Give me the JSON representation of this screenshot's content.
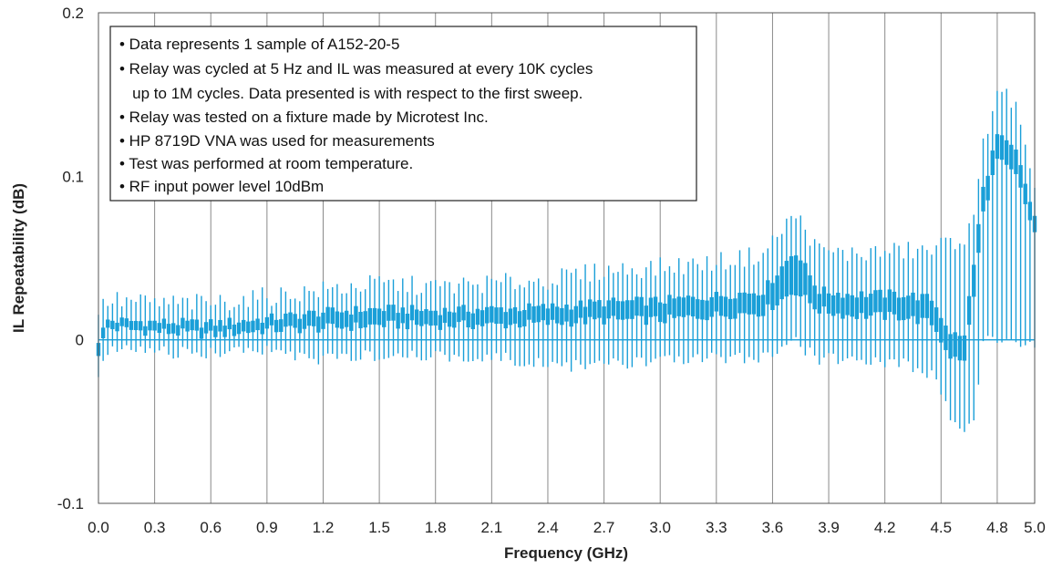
{
  "chart_data": {
    "type": "box",
    "title": "",
    "xlabel": "Frequency (GHz)",
    "ylabel": "IL Repeatability (dB)",
    "xlim": [
      0.0,
      5.0
    ],
    "ylim": [
      -0.1,
      0.2
    ],
    "x_ticks": [
      "0.0",
      "0.3",
      "0.6",
      "0.9",
      "1.2",
      "1.5",
      "1.8",
      "2.1",
      "2.4",
      "2.7",
      "3.0",
      "3.3",
      "3.6",
      "3.9",
      "4.2",
      "4.5",
      "4.8",
      "5.0"
    ],
    "y_ticks": [
      "-0.1",
      "0",
      "0.1",
      "0.2"
    ],
    "grid": "vertical",
    "reference_line_y": 0,
    "colors": {
      "series": "#1a9fd8",
      "grid": "#8a8a8a",
      "frame": "#555555"
    },
    "series": [
      {
        "box_count": 201,
        "x_start": 0.0,
        "x_step": 0.025,
        "anchors": [
          {
            "x": 0.0,
            "whisker_low": -0.02,
            "q1": -0.008,
            "q3": 0.0,
            "whisker_high": 0.015
          },
          {
            "x": 0.05,
            "whisker_low": -0.005,
            "q1": 0.007,
            "q3": 0.012,
            "whisker_high": 0.022
          },
          {
            "x": 0.3,
            "whisker_low": -0.006,
            "q1": 0.005,
            "q3": 0.011,
            "whisker_high": 0.02
          },
          {
            "x": 0.6,
            "whisker_low": -0.007,
            "q1": 0.003,
            "q3": 0.01,
            "whisker_high": 0.02
          },
          {
            "x": 0.9,
            "whisker_low": -0.006,
            "q1": 0.006,
            "q3": 0.013,
            "whisker_high": 0.024
          },
          {
            "x": 1.2,
            "whisker_low": -0.01,
            "q1": 0.007,
            "q3": 0.017,
            "whisker_high": 0.028
          },
          {
            "x": 1.5,
            "whisker_low": -0.008,
            "q1": 0.009,
            "q3": 0.019,
            "whisker_high": 0.032
          },
          {
            "x": 1.8,
            "whisker_low": -0.008,
            "q1": 0.009,
            "q3": 0.018,
            "whisker_high": 0.03
          },
          {
            "x": 2.1,
            "whisker_low": -0.009,
            "q1": 0.009,
            "q3": 0.019,
            "whisker_high": 0.032
          },
          {
            "x": 2.4,
            "whisker_low": -0.014,
            "q1": 0.01,
            "q3": 0.02,
            "whisker_high": 0.034
          },
          {
            "x": 2.7,
            "whisker_low": -0.014,
            "q1": 0.012,
            "q3": 0.023,
            "whisker_high": 0.04
          },
          {
            "x": 3.0,
            "whisker_low": -0.012,
            "q1": 0.012,
            "q3": 0.024,
            "whisker_high": 0.042
          },
          {
            "x": 3.3,
            "whisker_low": -0.01,
            "q1": 0.015,
            "q3": 0.027,
            "whisker_high": 0.045
          },
          {
            "x": 3.55,
            "whisker_low": -0.009,
            "q1": 0.017,
            "q3": 0.03,
            "whisker_high": 0.05
          },
          {
            "x": 3.72,
            "whisker_low": 0.0,
            "q1": 0.03,
            "q3": 0.055,
            "whisker_high": 0.075
          },
          {
            "x": 3.85,
            "whisker_low": -0.01,
            "q1": 0.018,
            "q3": 0.03,
            "whisker_high": 0.052
          },
          {
            "x": 4.0,
            "whisker_low": -0.01,
            "q1": 0.015,
            "q3": 0.028,
            "whisker_high": 0.05
          },
          {
            "x": 4.3,
            "whisker_low": -0.012,
            "q1": 0.014,
            "q3": 0.028,
            "whisker_high": 0.052
          },
          {
            "x": 4.45,
            "whisker_low": -0.02,
            "q1": 0.01,
            "q3": 0.025,
            "whisker_high": 0.052
          },
          {
            "x": 4.55,
            "whisker_low": -0.045,
            "q1": -0.01,
            "q3": 0.005,
            "whisker_high": 0.058
          },
          {
            "x": 4.62,
            "whisker_low": -0.055,
            "q1": -0.015,
            "q3": 0.0,
            "whisker_high": 0.06
          },
          {
            "x": 4.68,
            "whisker_low": -0.045,
            "q1": 0.03,
            "q3": 0.05,
            "whisker_high": 0.07
          },
          {
            "x": 4.72,
            "whisker_low": 0.0,
            "q1": 0.075,
            "q3": 0.09,
            "whisker_high": 0.115
          },
          {
            "x": 4.8,
            "whisker_low": 0.0,
            "q1": 0.11,
            "q3": 0.125,
            "whisker_high": 0.152
          },
          {
            "x": 4.9,
            "whisker_low": 0.0,
            "q1": 0.1,
            "q3": 0.115,
            "whisker_high": 0.14
          },
          {
            "x": 5.0,
            "whisker_low": 0.0,
            "q1": 0.065,
            "q3": 0.075,
            "whisker_high": 0.085
          }
        ]
      }
    ]
  },
  "notes": [
    "• Data represents 1 sample of A152-20-5",
    "• Relay was cycled at 5 Hz and IL was measured at every 10K cycles",
    "   up to 1M cycles. Data presented is with respect to the first sweep.",
    "• Relay was tested on a fixture made by Microtest Inc.",
    "• HP 8719D VNA was used for measurements",
    "• Test was performed at room temperature.",
    "• RF input power level 10dBm"
  ]
}
